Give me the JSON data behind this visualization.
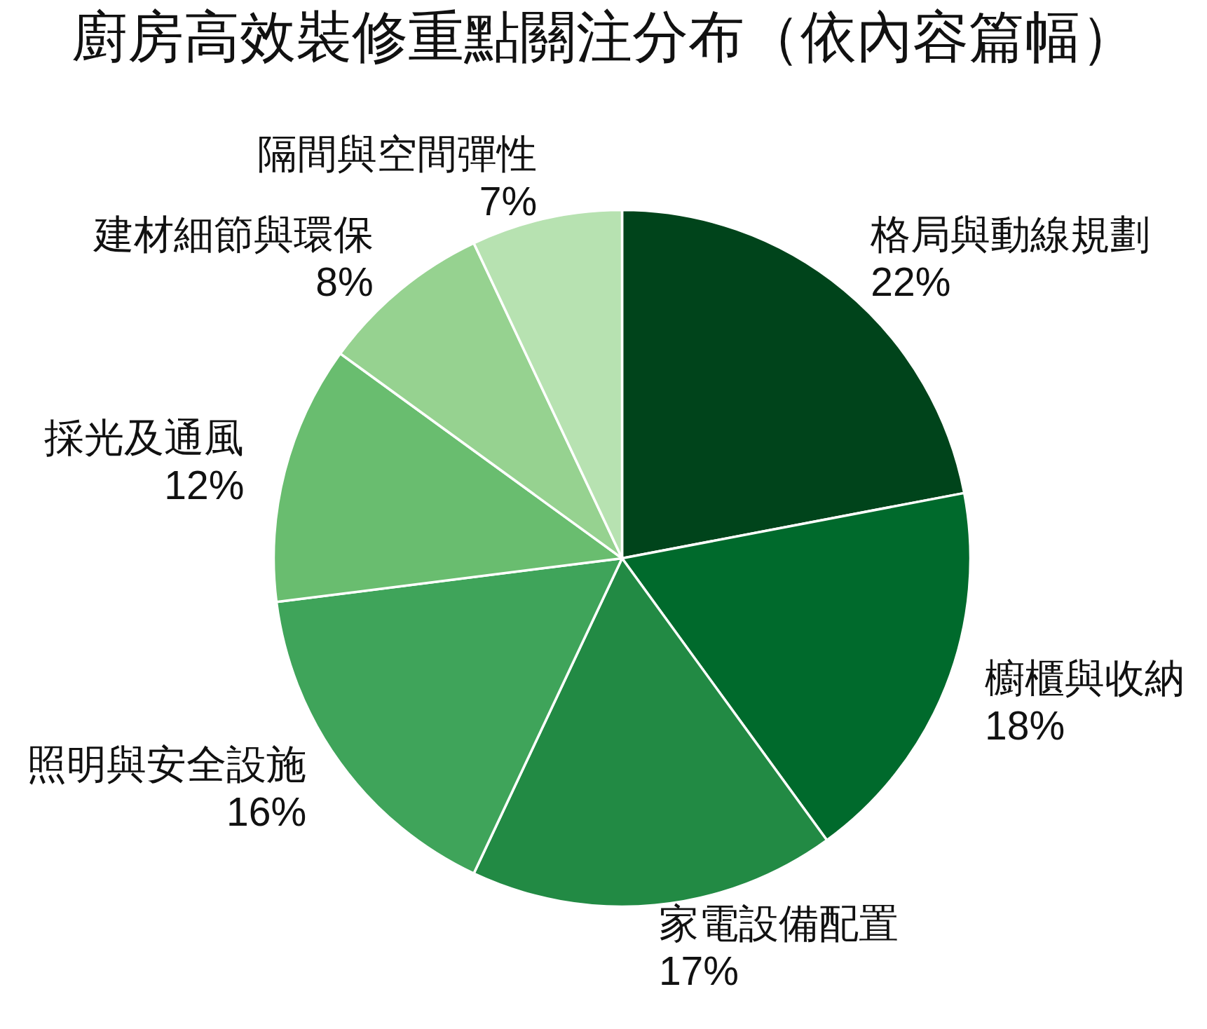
{
  "chart_data": {
    "type": "pie",
    "title": "廚房高效裝修重點關注分布（依內容篇幅）",
    "categories": [
      "格局與動線規劃",
      "櫥櫃與收納",
      "家電設備配置",
      "照明與安全設施",
      "採光及通風",
      "建材細節與環保",
      "隔間與空間彈性"
    ],
    "values": [
      22,
      18,
      17,
      16,
      12,
      8,
      7
    ],
    "colors": [
      "#00441b",
      "#006a2c",
      "#228a44",
      "#3fa45a",
      "#69bd6f",
      "#96d290",
      "#b7e2b1"
    ],
    "value_labels": [
      "22%",
      "18%",
      "17%",
      "16%",
      "12%",
      "8%",
      "7%"
    ]
  }
}
